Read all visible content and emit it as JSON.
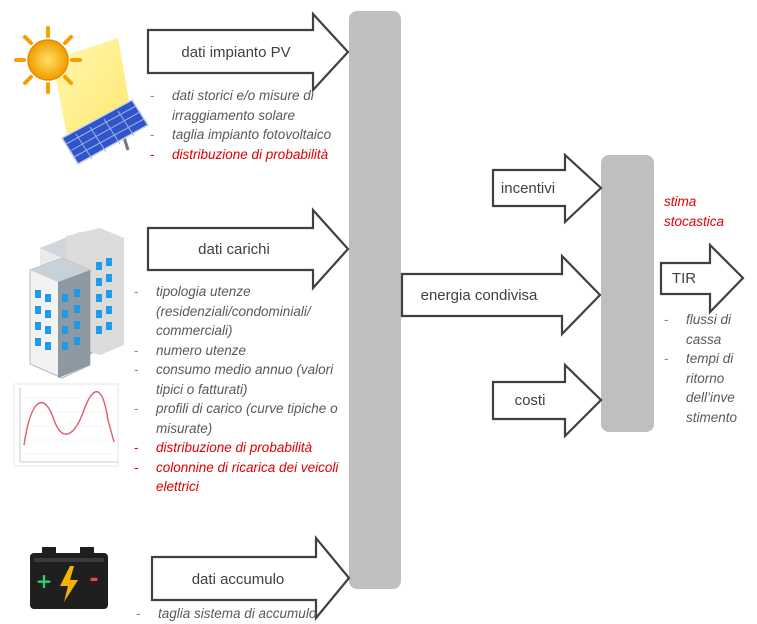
{
  "inputs": {
    "pv": {
      "label": "dati impianto PV",
      "items": [
        {
          "text": "dati storici e/o misure di irraggiamento solare",
          "highlight": false
        },
        {
          "text": "taglia impianto fotovoltaico",
          "highlight": false
        },
        {
          "text": "distribuzione di probabilità",
          "highlight": true
        }
      ]
    },
    "loads": {
      "label": "dati carichi",
      "items": [
        {
          "text": "tipologia utenze (residenziali/condominiali/ commerciali)",
          "highlight": false
        },
        {
          "text": "numero utenze",
          "highlight": false
        },
        {
          "text": "consumo medio annuo (valori tipici o fatturati)",
          "highlight": false
        },
        {
          "text": "profili di carico (curve tipiche o misurate)",
          "highlight": false
        },
        {
          "text": "distribuzione di probabilità",
          "highlight": true
        },
        {
          "text": "colonnine di ricarica dei veicoli elettrici",
          "highlight": true
        }
      ]
    },
    "storage": {
      "label": "dati accumulo",
      "items": [
        {
          "text": "taglia sistema di accumulo",
          "highlight": false
        }
      ]
    }
  },
  "middle": {
    "shared_energy_label": "energia condivisa",
    "incentives_label": "incentivi",
    "costs_label": "costi"
  },
  "output": {
    "stochastic_note": "stima stocastica",
    "tir_label": "TIR",
    "items": [
      {
        "text": "flussi di cassa",
        "highlight": false
      },
      {
        "text": "tempi di ritorno dell’inve stimento",
        "highlight": false
      }
    ]
  },
  "colors": {
    "highlight": "#e00000",
    "block": "#bfbfbf",
    "arrow_stroke": "#404040",
    "sun": "#f5a800",
    "panel": "#2f55c8",
    "battery": "#1f1f1f"
  },
  "icons": [
    "sun-icon",
    "solar-panel-icon",
    "buildings-icon",
    "load-curve-icon",
    "battery-icon"
  ]
}
